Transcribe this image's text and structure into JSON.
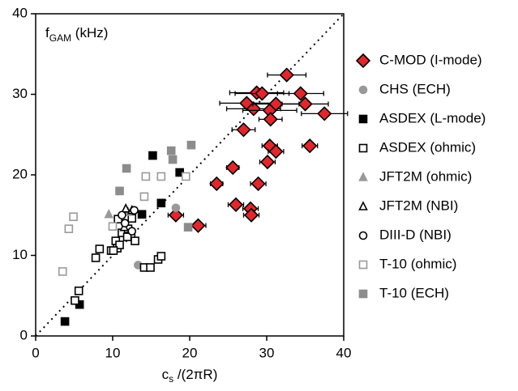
{
  "chart_data": {
    "type": "scatter",
    "ylabel": {
      "main": "f",
      "sub": "GAM",
      "unit": " (kHz)"
    },
    "xlabel": {
      "main": "c",
      "sub": "s",
      "unit": " /(2πR)"
    },
    "xlim": [
      0,
      40
    ],
    "ylim": [
      0,
      40
    ],
    "xticks": [
      0,
      10,
      20,
      30,
      40
    ],
    "yticks": [
      0,
      10,
      20,
      30,
      40
    ],
    "reference_line": {
      "x": [
        0,
        40
      ],
      "y": [
        0,
        40
      ],
      "color": "#000000"
    },
    "series": [
      {
        "name": "C-MOD (I-mode)",
        "marker": "diamond",
        "filled": true,
        "color": "#e3262b",
        "x": [
          32.6,
          28.7,
          29.4,
          27.4,
          28.3,
          30.4,
          31.2,
          34.4,
          35.0,
          37.5,
          30.5,
          27.0,
          30.4,
          31.2,
          30.1,
          35.6,
          25.6,
          23.5,
          28.9,
          26.0,
          27.9,
          28.0,
          18.2,
          21.1
        ],
        "values": [
          32.4,
          30.2,
          30.1,
          28.9,
          28.2,
          28.0,
          28.8,
          30.1,
          28.8,
          27.6,
          26.9,
          25.6,
          23.6,
          22.9,
          21.6,
          23.6,
          20.9,
          18.9,
          18.9,
          16.3,
          15.8,
          15.0,
          15.0,
          13.7
        ],
        "xerr": [
          2.5,
          3.5,
          3.5,
          3.5,
          3.5,
          3.5,
          3.0,
          3.0,
          3.0,
          3.0,
          1.5,
          1.5,
          1.0,
          1.0,
          1.0,
          1.0,
          0.8,
          0.8,
          1.0,
          1.0,
          1.0,
          1.0,
          1.0,
          1.0
        ]
      },
      {
        "name": "CHS (ECH)",
        "marker": "circle",
        "filled": true,
        "color": "#999999",
        "x": [
          18.2,
          13.3
        ],
        "values": [
          15.9,
          8.8
        ]
      },
      {
        "name": "ASDEX (L-mode)",
        "marker": "square",
        "filled": true,
        "color": "#000000",
        "x": [
          3.8,
          5.7,
          15.2,
          18.7,
          16.3,
          13.8
        ],
        "values": [
          1.8,
          3.9,
          22.4,
          20.3,
          16.5,
          15.1
        ]
      },
      {
        "name": "ASDEX (ohmic)",
        "marker": "square",
        "filled": false,
        "color": "#000000",
        "x": [
          5.1,
          5.6,
          7.8,
          8.3,
          9.8,
          10.4,
          10.6,
          10.9,
          10.7,
          11.2,
          12.0,
          12.4,
          12.5,
          12.9,
          14.1,
          14.9,
          15.9,
          16.3,
          10.1,
          11.9
        ],
        "values": [
          4.4,
          5.6,
          9.7,
          10.8,
          10.6,
          11.8,
          10.9,
          11.3,
          14.5,
          12.8,
          13.3,
          12.4,
          14.6,
          11.8,
          8.5,
          8.5,
          9.5,
          9.9,
          10.6,
          12.3
        ]
      },
      {
        "name": "JFT2M (ohmic)",
        "marker": "triangle",
        "filled": true,
        "color": "#999999",
        "x": [
          9.5,
          12.0
        ],
        "values": [
          15.1,
          15.4
        ]
      },
      {
        "name": "JFT2M (NBI)",
        "marker": "triangle",
        "filled": false,
        "color": "#000000",
        "x": [
          11.7,
          12.5,
          11.5
        ],
        "values": [
          15.8,
          15.6,
          13.5
        ]
      },
      {
        "name": "DIII-D (NBI)",
        "marker": "circle",
        "filled": false,
        "color": "#000000",
        "x": [
          12.8,
          12.5,
          11.2,
          11.6
        ],
        "values": [
          15.6,
          13.0,
          15.0,
          14.0
        ]
      },
      {
        "name": "T-10 (ohmic)",
        "marker": "square",
        "filled": false,
        "color": "#999999",
        "x": [
          3.5,
          4.3,
          4.9,
          14.3,
          16.3,
          14.1,
          19.5,
          10.0
        ],
        "values": [
          8.0,
          13.3,
          14.8,
          19.8,
          19.8,
          17.3,
          19.8,
          13.6
        ]
      },
      {
        "name": "T-10 (ECH)",
        "marker": "square",
        "filled": true,
        "color": "#8c8c8c",
        "x": [
          11.8,
          10.9,
          17.6,
          20.2,
          19.8,
          17.8
        ],
        "values": [
          20.8,
          18.0,
          23.0,
          23.7,
          13.5,
          21.9
        ]
      }
    ]
  }
}
